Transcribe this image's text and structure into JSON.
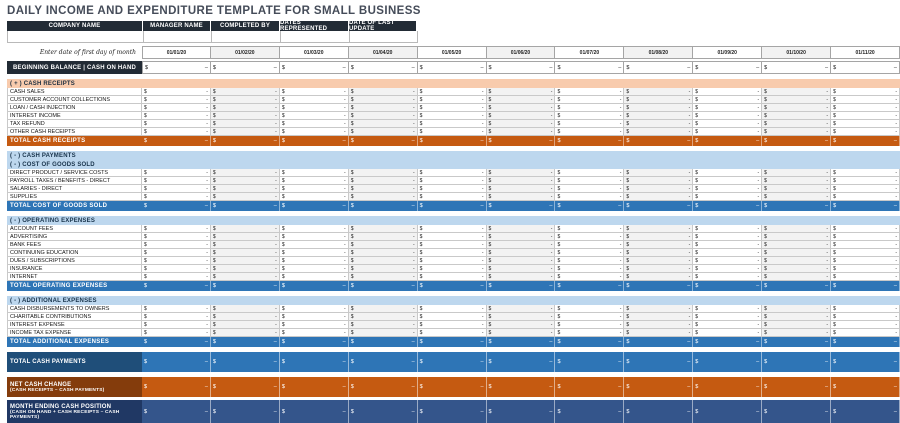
{
  "title": "DAILY INCOME AND EXPENDITURE TEMPLATE FOR SMALL BUSINESS",
  "info_table": {
    "headers": [
      "COMPANY NAME",
      "MANAGER NAME",
      "COMPLETED BY",
      "DATES REPRESENTED",
      "DATE OF LAST UPDATE"
    ],
    "values": [
      "",
      "",
      "",
      "",
      ""
    ]
  },
  "date_row": {
    "label": "Enter date of first day of month",
    "dates": [
      "01/01/20",
      "01/02/20",
      "01/03/20",
      "01/04/20",
      "01/05/20",
      "01/06/20",
      "01/07/20",
      "01/08/20",
      "01/09/20",
      "01/10/20",
      "01/11/20"
    ]
  },
  "amount_placeholder": {
    "currency": "$",
    "empty": "-",
    "empty_total": "–"
  },
  "sections": [
    {
      "id": "beginning-balance",
      "type": "beginning",
      "label": "BEGINNING BALANCE | CASH ON HAND"
    },
    {
      "type": "gap"
    },
    {
      "id": "cash-receipts-header",
      "type": "header",
      "style": "peach",
      "label": "( + )  CASH RECEIPTS"
    },
    {
      "id": "cash-receipts-items",
      "type": "items",
      "items": [
        "CASH SALES",
        "CUSTOMER ACCOUNT COLLECTIONS",
        "LOAN / CASH INJECTION",
        "INTEREST INCOME",
        "TAX REFUND",
        "OTHER CASH RECEIPTS"
      ]
    },
    {
      "id": "total-cash-receipts",
      "type": "total",
      "style": "orange",
      "label": "TOTAL CASH RECEIPTS"
    },
    {
      "type": "gap"
    },
    {
      "id": "cash-payments-header",
      "type": "header",
      "style": "blueh",
      "label": "( - )  CASH PAYMENTS"
    },
    {
      "id": "cogs-header",
      "type": "header",
      "style": "blueh",
      "label": "( - )  COST OF GOODS SOLD"
    },
    {
      "id": "cogs-items",
      "type": "items",
      "items": [
        "DIRECT PRODUCT / SERVICE COSTS",
        "PAYROLL TAXES / BENEFITS - DIRECT",
        "SALARIES - DIRECT",
        "SUPPLIES"
      ]
    },
    {
      "id": "total-cogs",
      "type": "total",
      "style": "midblue",
      "label": "TOTAL COST OF GOODS SOLD"
    },
    {
      "type": "gap"
    },
    {
      "id": "operating-expenses-header",
      "type": "header",
      "style": "blueh",
      "label": "( - )  OPERATING EXPENSES"
    },
    {
      "id": "operating-expenses-items",
      "type": "items",
      "items": [
        "ACCOUNT FEES",
        "ADVERTISING",
        "BANK FEES",
        "CONTINUING EDUCATION",
        "DUES / SUBSCRIPTIONS",
        "INSURANCE",
        "INTERNET"
      ]
    },
    {
      "id": "total-operating-expenses",
      "type": "total",
      "style": "midblue",
      "label": "TOTAL OPERATING EXPENSES"
    },
    {
      "type": "gap"
    },
    {
      "id": "additional-expenses-header",
      "type": "header",
      "style": "blueh",
      "label": "( - )  ADDITIONAL EXPENSES"
    },
    {
      "id": "additional-expenses-items",
      "type": "items",
      "items": [
        "CASH DISBURSEMENTS TO OWNERS",
        "CHARITABLE CONTRIBUTIONS",
        "INTEREST EXPENSE",
        "INCOME TAX EXPENSE"
      ]
    },
    {
      "id": "total-additional-expenses",
      "type": "total",
      "style": "midblue",
      "label": "TOTAL ADDITIONAL EXPENSES"
    },
    {
      "type": "gap"
    },
    {
      "id": "total-cash-payments",
      "type": "big",
      "style": "payments",
      "label": "TOTAL CASH PAYMENTS",
      "sub": ""
    },
    {
      "type": "gap"
    },
    {
      "id": "net-cash-change",
      "type": "big",
      "style": "net",
      "label": "NET CASH CHANGE",
      "sub": "(CASH RECEIPTS – CASH PAYMENTS)"
    },
    {
      "type": "gap",
      "small": true
    },
    {
      "id": "month-ending-cash-position",
      "type": "big",
      "style": "month",
      "label": "MONTH ENDING CASH POSITION",
      "sub": "(CASH ON HAND + CASH RECEIPTS – CASH PAYMENTS)"
    }
  ],
  "colors": {
    "dark_navy": "#222B35",
    "peach_header": "#F8CBAD",
    "light_blue_header": "#BDD7EE",
    "orange_total": "#C55A11",
    "mid_blue_total": "#2E75B6",
    "payments_label": "#1F4E79",
    "net_change_label": "#843C0C",
    "month_ending_label": "#203864",
    "month_ending_data": "#34558B",
    "alt_column": "#F2F2F2"
  }
}
